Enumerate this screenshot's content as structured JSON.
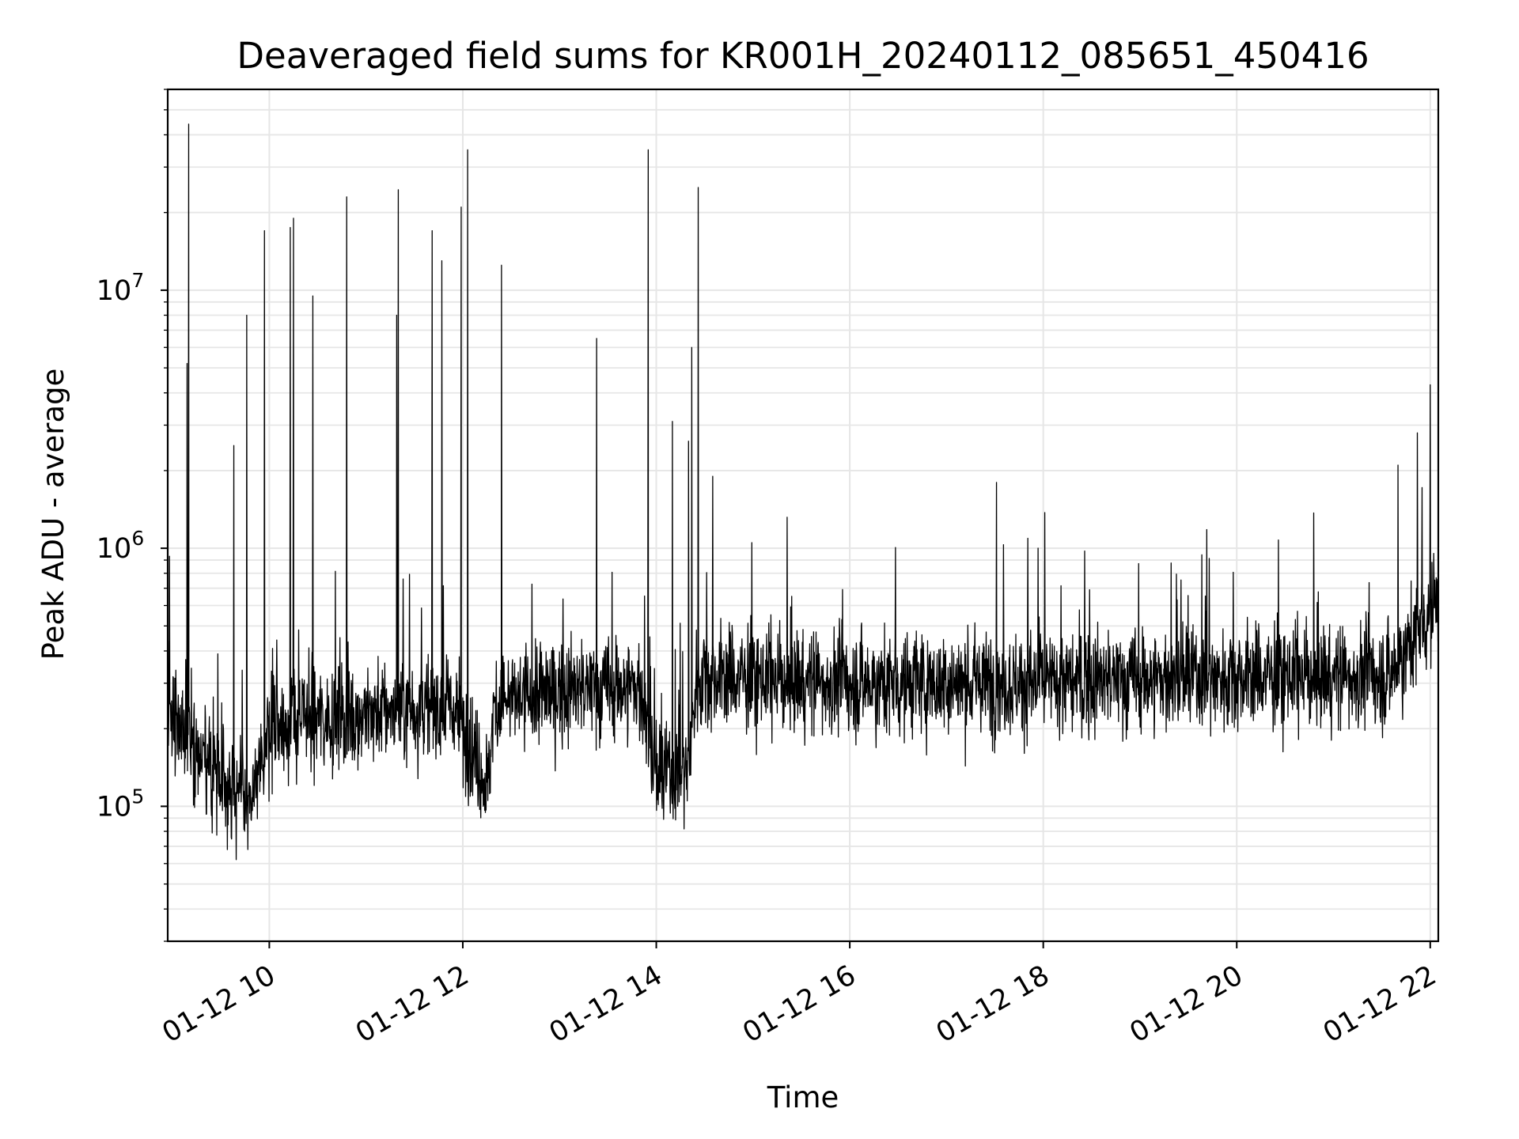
{
  "chart_data": {
    "type": "line",
    "title": "Deaveraged field sums for KR001H_20240112_085651_450416",
    "xlabel": "Time",
    "ylabel": "Peak ADU - average",
    "x_range": [
      "2024-01-12T08:57",
      "2024-01-12T22:05"
    ],
    "ylim": [
      30000,
      60000000
    ],
    "yscale": "log",
    "grid": true,
    "x_ticks": [
      {
        "time": "2024-01-12T10:00",
        "label": "01-12 10"
      },
      {
        "time": "2024-01-12T12:00",
        "label": "01-12 12"
      },
      {
        "time": "2024-01-12T14:00",
        "label": "01-12 14"
      },
      {
        "time": "2024-01-12T16:00",
        "label": "01-12 16"
      },
      {
        "time": "2024-01-12T18:00",
        "label": "01-12 18"
      },
      {
        "time": "2024-01-12T20:00",
        "label": "01-12 20"
      },
      {
        "time": "2024-01-12T22:00",
        "label": "01-12 22"
      }
    ],
    "y_ticks": [
      {
        "value": 100000,
        "base": "10",
        "exp": "5"
      },
      {
        "value": 1000000,
        "base": "10",
        "exp": "6"
      },
      {
        "value": 10000000,
        "base": "10",
        "exp": "7"
      }
    ],
    "line_color": "#000000",
    "grid_color": "#e6e6e6",
    "baseline": [
      {
        "time": "2024-01-12T08:57",
        "value": 250000
      },
      {
        "time": "2024-01-12T09:20",
        "value": 150000
      },
      {
        "time": "2024-01-12T09:50",
        "value": 100000
      },
      {
        "time": "2024-01-12T10:00",
        "value": 200000
      },
      {
        "time": "2024-01-12T10:30",
        "value": 220000
      },
      {
        "time": "2024-01-12T11:00",
        "value": 230000
      },
      {
        "time": "2024-01-12T11:30",
        "value": 240000
      },
      {
        "time": "2024-01-12T11:55",
        "value": 240000
      },
      {
        "time": "2024-01-12T12:15",
        "value": 120000
      },
      {
        "time": "2024-01-12T12:20",
        "value": 250000
      },
      {
        "time": "2024-01-12T13:00",
        "value": 280000
      },
      {
        "time": "2024-01-12T13:50",
        "value": 290000
      },
      {
        "time": "2024-01-12T14:00",
        "value": 130000
      },
      {
        "time": "2024-01-12T14:20",
        "value": 140000
      },
      {
        "time": "2024-01-12T14:25",
        "value": 320000
      },
      {
        "time": "2024-01-12T16:00",
        "value": 300000
      },
      {
        "time": "2024-01-12T18:00",
        "value": 300000
      },
      {
        "time": "2024-01-12T20:00",
        "value": 320000
      },
      {
        "time": "2024-01-12T21:35",
        "value": 320000
      },
      {
        "time": "2024-01-12T22:05",
        "value": 650000
      }
    ],
    "spikes": [
      {
        "time": "2024-01-12T09:10",
        "value": 44000000
      },
      {
        "time": "2024-01-12T09:09",
        "value": 5200000
      },
      {
        "time": "2024-01-12T09:38",
        "value": 2500000
      },
      {
        "time": "2024-01-12T09:46",
        "value": 8000000
      },
      {
        "time": "2024-01-12T09:57",
        "value": 17000000
      },
      {
        "time": "2024-01-12T10:13",
        "value": 17500000
      },
      {
        "time": "2024-01-12T10:15",
        "value": 19000000
      },
      {
        "time": "2024-01-12T10:27",
        "value": 9500000
      },
      {
        "time": "2024-01-12T10:48",
        "value": 23000000
      },
      {
        "time": "2024-01-12T11:19",
        "value": 8000000
      },
      {
        "time": "2024-01-12T11:20",
        "value": 24500000
      },
      {
        "time": "2024-01-12T11:41",
        "value": 17000000
      },
      {
        "time": "2024-01-12T11:47",
        "value": 13000000
      },
      {
        "time": "2024-01-12T11:59",
        "value": 21000000
      },
      {
        "time": "2024-01-12T12:03",
        "value": 35000000
      },
      {
        "time": "2024-01-12T12:24",
        "value": 12500000
      },
      {
        "time": "2024-01-12T13:23",
        "value": 6500000
      },
      {
        "time": "2024-01-12T13:55",
        "value": 35000000
      },
      {
        "time": "2024-01-12T14:10",
        "value": 3100000
      },
      {
        "time": "2024-01-12T14:20",
        "value": 2600000
      },
      {
        "time": "2024-01-12T14:22",
        "value": 6000000
      },
      {
        "time": "2024-01-12T14:26",
        "value": 25000000
      },
      {
        "time": "2024-01-12T14:35",
        "value": 1900000
      },
      {
        "time": "2024-01-12T17:31",
        "value": 1800000
      },
      {
        "time": "2024-01-12T21:40",
        "value": 2100000
      },
      {
        "time": "2024-01-12T21:52",
        "value": 2800000
      },
      {
        "time": "2024-01-12T22:00",
        "value": 4300000
      }
    ]
  }
}
